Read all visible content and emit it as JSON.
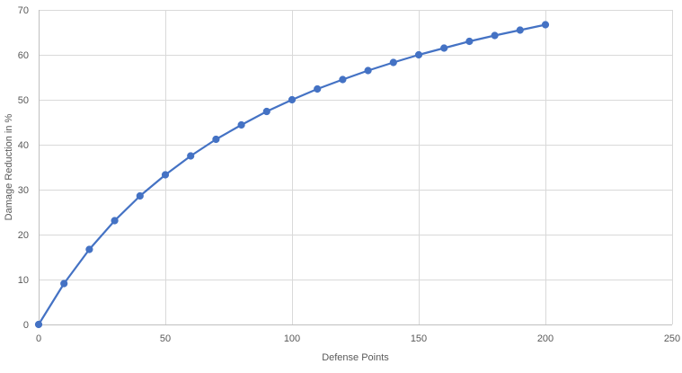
{
  "chart_data": {
    "type": "scatter",
    "title": "",
    "xlabel": "Defense Points",
    "ylabel": "Damage Reduction in %",
    "xlim": [
      0,
      250
    ],
    "ylim": [
      0,
      70
    ],
    "x_ticks": [
      0,
      50,
      100,
      150,
      200,
      250
    ],
    "y_ticks": [
      0,
      10,
      20,
      30,
      40,
      50,
      60,
      70
    ],
    "grid": true,
    "legend": "none",
    "line_color": "#4472c4",
    "series": [
      {
        "x": [
          0,
          10,
          20,
          30,
          40,
          50,
          60,
          70,
          80,
          90,
          100,
          110,
          120,
          130,
          140,
          150,
          160,
          170,
          180,
          190,
          200
        ],
        "y": [
          0,
          9.1,
          16.7,
          23.1,
          28.6,
          33.3,
          37.5,
          41.2,
          44.4,
          47.4,
          50.0,
          52.4,
          54.5,
          56.5,
          58.3,
          60.0,
          61.5,
          63.0,
          64.3,
          65.5,
          66.7
        ]
      }
    ]
  }
}
